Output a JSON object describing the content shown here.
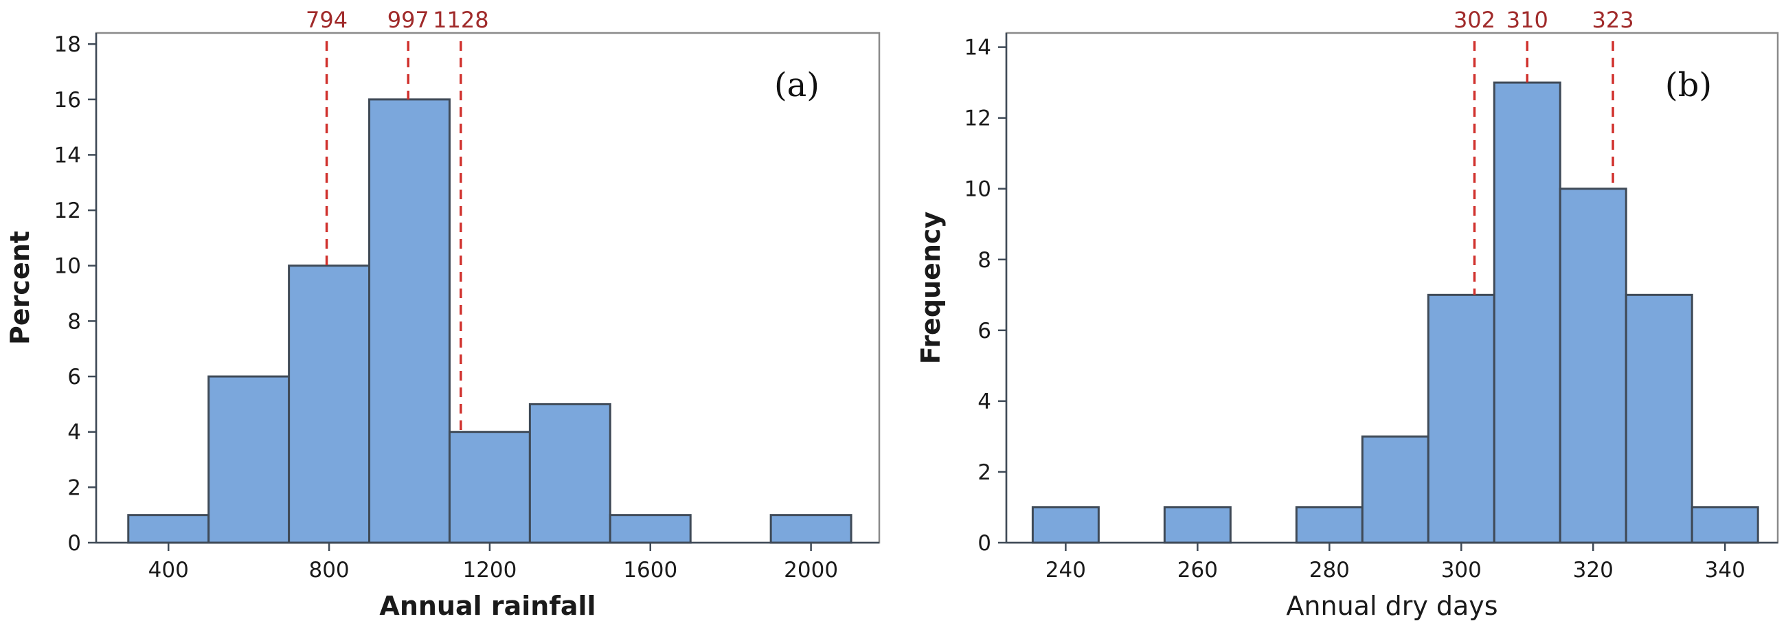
{
  "chart_data": [
    {
      "type": "bar",
      "panel_label": "(a)",
      "xlabel": "Annual rainfall",
      "ylabel": "Percent",
      "bin_edges": [
        300,
        500,
        700,
        900,
        1100,
        1300,
        1500,
        1700,
        1900,
        2100
      ],
      "values": [
        1,
        6,
        10,
        16,
        4,
        5,
        1,
        0,
        1
      ],
      "xlim": [
        220,
        2170
      ],
      "ylim": [
        0,
        18.4
      ],
      "xticks": [
        400,
        800,
        1200,
        1600,
        2000
      ],
      "yticks": [
        0,
        2,
        4,
        6,
        8,
        10,
        12,
        14,
        16,
        18
      ],
      "reference_lines": [
        {
          "x": 794,
          "label": "794",
          "y_bottom": 10
        },
        {
          "x": 997,
          "label": "997",
          "y_bottom": 16
        },
        {
          "x": 1128,
          "label": "1128",
          "y_bottom": 4
        }
      ],
      "bar_color": "#7ba7dc",
      "reference_line_color": "#d0312d",
      "grid": false
    },
    {
      "type": "bar",
      "panel_label": "(b)",
      "xlabel": "Annual dry days",
      "ylabel": "Frequency",
      "bin_edges": [
        235,
        245,
        255,
        265,
        275,
        285,
        295,
        305,
        315,
        325,
        335,
        345
      ],
      "values": [
        1,
        0,
        1,
        0,
        1,
        3,
        7,
        13,
        10,
        7,
        1
      ],
      "xlim": [
        231,
        348
      ],
      "ylim": [
        0,
        14.4
      ],
      "xticks": [
        240,
        260,
        280,
        300,
        320,
        340
      ],
      "yticks": [
        0,
        2,
        4,
        6,
        8,
        10,
        12,
        14
      ],
      "reference_lines": [
        {
          "x": 302,
          "label": "302",
          "y_bottom": 7
        },
        {
          "x": 310,
          "label": "310",
          "y_bottom": 13
        },
        {
          "x": 323,
          "label": "323",
          "y_bottom": 10
        }
      ],
      "bar_color": "#7ba7dc",
      "reference_line_color": "#d0312d",
      "grid": false
    }
  ]
}
